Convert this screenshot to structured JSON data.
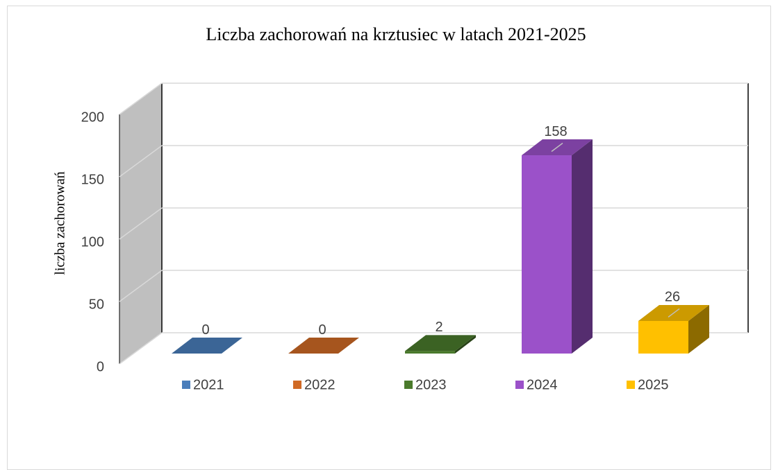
{
  "chart_data": {
    "type": "bar3d",
    "title": "Liczba zachorowań na krztusiec w latach 2021-2025",
    "y_label": "liczba zachorowań",
    "series": [
      {
        "name": "2021",
        "color": "#4a7ebb",
        "values": [
          0
        ]
      },
      {
        "name": "2022",
        "color": "#d06a25",
        "values": [
          0
        ]
      },
      {
        "name": "2023",
        "color": "#4a7a2c",
        "values": [
          2
        ]
      },
      {
        "name": "2024",
        "color": "#9b51c9",
        "values": [
          158
        ]
      },
      {
        "name": "2025",
        "color": "#ffc000",
        "values": [
          26
        ]
      }
    ],
    "ylim": [
      0,
      200
    ],
    "yticks": [
      0,
      50,
      100,
      150,
      200
    ],
    "grid": true,
    "legend": "bottom"
  }
}
